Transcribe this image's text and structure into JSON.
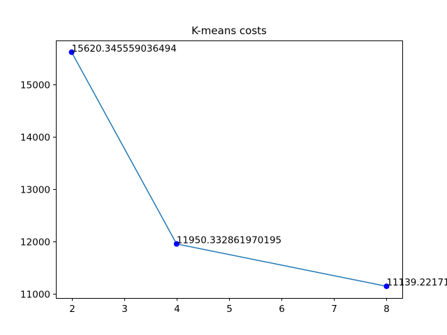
{
  "chart_data": {
    "type": "line",
    "title": "K-means costs",
    "xlabel": "",
    "ylabel": "",
    "x": [
      2,
      4,
      8
    ],
    "series": [
      {
        "values": [
          15620.345559036494,
          11950.332861970195,
          11139.22171
        ],
        "line_color": "#1f77b4",
        "marker_color": "#0000ff"
      }
    ],
    "data_labels": [
      "15620.345559036494",
      "11950.332861970195",
      "11139.22171"
    ],
    "xlim": [
      1.7,
      8.3
    ],
    "ylim": [
      10915,
      15845
    ],
    "xticks": [
      2,
      3,
      4,
      5,
      6,
      7,
      8
    ],
    "yticks": [
      11000,
      12000,
      13000,
      14000,
      15000
    ],
    "ytick_labels": [
      "11000",
      "12000",
      "13000",
      "14000",
      "15000"
    ],
    "grid": false,
    "legend": "none"
  }
}
